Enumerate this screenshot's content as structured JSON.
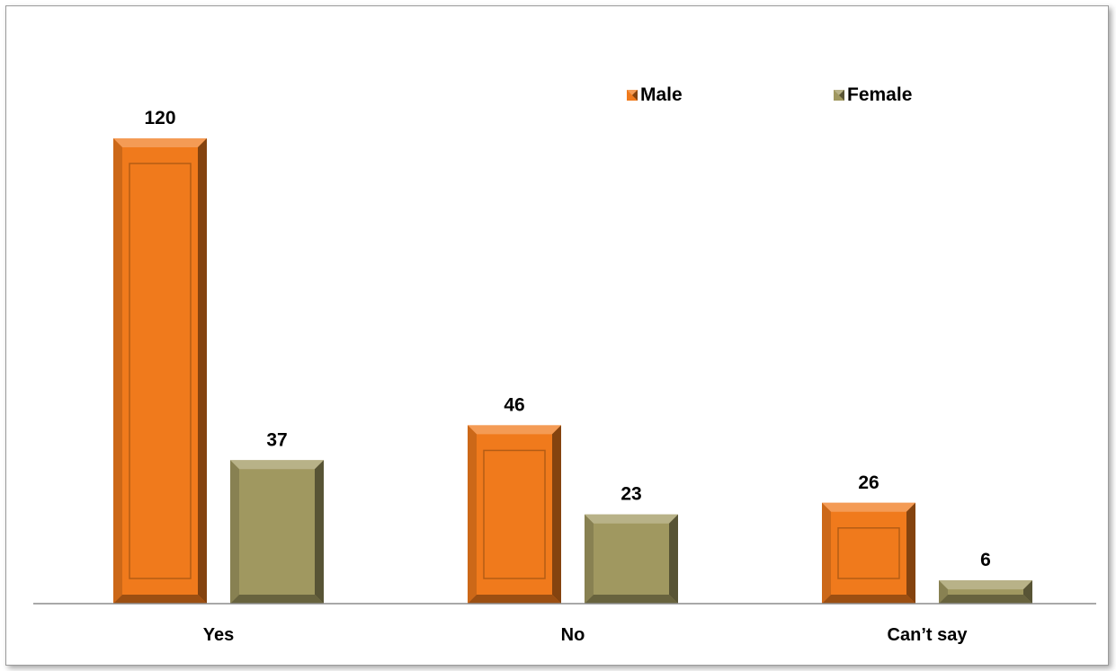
{
  "chart_data": {
    "type": "bar",
    "categories": [
      "Yes",
      "No",
      "Can’t say"
    ],
    "series": [
      {
        "name": "Male",
        "values": [
          120,
          46,
          26
        ],
        "color": "#f07a1c"
      },
      {
        "name": "Female",
        "values": [
          37,
          23,
          6
        ],
        "color": "#a09860"
      }
    ],
    "title": "",
    "xlabel": "",
    "ylabel": "",
    "ylim": [
      0,
      120
    ],
    "grid": false,
    "legend": "top-right",
    "data_labels": true
  }
}
